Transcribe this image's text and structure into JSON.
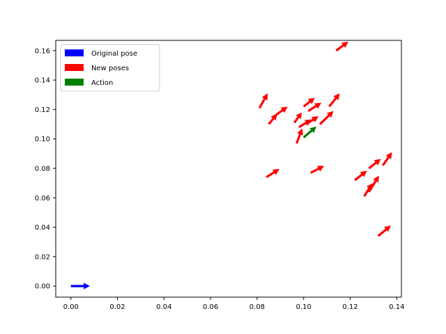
{
  "chart_data": {
    "type": "quiver",
    "title": "",
    "xlabel": "",
    "ylabel": "",
    "xlim": [
      -0.0065,
      0.142
    ],
    "ylim": [
      -0.0075,
      0.167
    ],
    "grid": false,
    "legend_placement": "top-left",
    "x_ticks": [
      "0.00",
      "0.02",
      "0.04",
      "0.06",
      "0.08",
      "0.10",
      "0.12",
      "0.14"
    ],
    "y_ticks": [
      "0.00",
      "0.02",
      "0.04",
      "0.06",
      "0.08",
      "0.10",
      "0.12",
      "0.14",
      "0.16"
    ],
    "series": [
      {
        "name": "Original pose",
        "color": "#0000ff",
        "points": [
          {
            "x": 0.0,
            "y": 0.0,
            "dx": 0.0082,
            "dy": 0.0
          }
        ]
      },
      {
        "name": "New poses",
        "color": "#ff0000",
        "points": [
          {
            "x": 0.114,
            "y": 0.16,
            "dx": 0.0052,
            "dy": 0.0062
          },
          {
            "x": 0.081,
            "y": 0.121,
            "dx": 0.0036,
            "dy": 0.01
          },
          {
            "x": 0.085,
            "y": 0.11,
            "dx": 0.0036,
            "dy": 0.007
          },
          {
            "x": 0.087,
            "y": 0.115,
            "dx": 0.0061,
            "dy": 0.007
          },
          {
            "x": 0.096,
            "y": 0.111,
            "dx": 0.0032,
            "dy": 0.0069
          },
          {
            "x": 0.097,
            "y": 0.097,
            "dx": 0.0024,
            "dy": 0.0102
          },
          {
            "x": 0.098,
            "y": 0.108,
            "dx": 0.0054,
            "dy": 0.0052
          },
          {
            "x": 0.1,
            "y": 0.122,
            "dx": 0.0048,
            "dy": 0.006
          },
          {
            "x": 0.102,
            "y": 0.119,
            "dx": 0.0056,
            "dy": 0.0056
          },
          {
            "x": 0.101,
            "y": 0.11,
            "dx": 0.0054,
            "dy": 0.0054
          },
          {
            "x": 0.107,
            "y": 0.11,
            "dx": 0.0058,
            "dy": 0.009
          },
          {
            "x": 0.111,
            "y": 0.122,
            "dx": 0.0045,
            "dy": 0.009
          },
          {
            "x": 0.084,
            "y": 0.074,
            "dx": 0.0056,
            "dy": 0.0056
          },
          {
            "x": 0.103,
            "y": 0.077,
            "dx": 0.0058,
            "dy": 0.0047
          },
          {
            "x": 0.122,
            "y": 0.072,
            "dx": 0.0052,
            "dy": 0.0064
          },
          {
            "x": 0.128,
            "y": 0.08,
            "dx": 0.0052,
            "dy": 0.0064
          },
          {
            "x": 0.134,
            "y": 0.082,
            "dx": 0.004,
            "dy": 0.009
          },
          {
            "x": 0.126,
            "y": 0.061,
            "dx": 0.0036,
            "dy": 0.009
          },
          {
            "x": 0.128,
            "y": 0.064,
            "dx": 0.0044,
            "dy": 0.011
          },
          {
            "x": 0.132,
            "y": 0.034,
            "dx": 0.0055,
            "dy": 0.0072
          }
        ]
      },
      {
        "name": "Action",
        "color": "#008000",
        "points": [
          {
            "x": 0.1,
            "y": 0.101,
            "dx": 0.0055,
            "dy": 0.0074
          }
        ]
      }
    ]
  }
}
